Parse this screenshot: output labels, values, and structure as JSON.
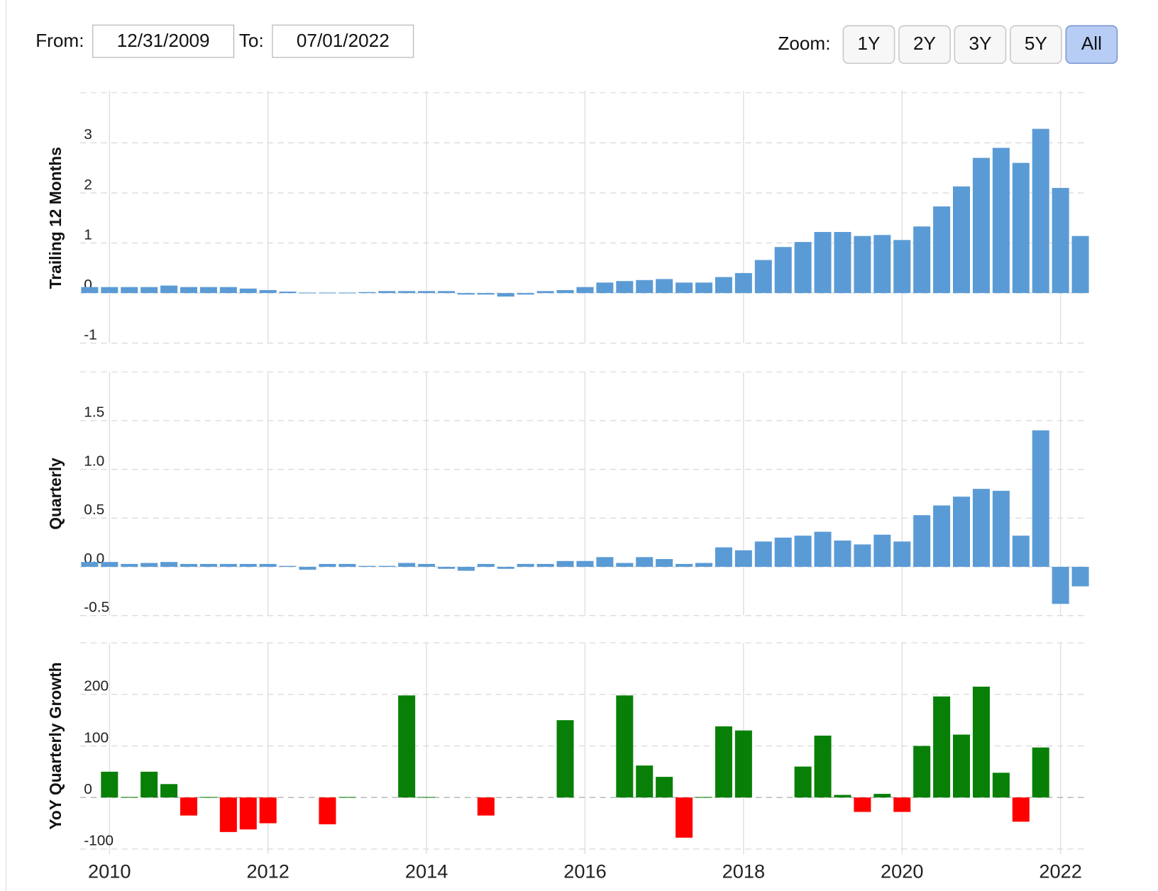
{
  "controls": {
    "from_label": "From:",
    "from_value": "12/31/2009",
    "to_label": "To:",
    "to_value": "07/01/2022",
    "zoom_label": "Zoom:",
    "zoom_buttons": [
      "1Y",
      "2Y",
      "3Y",
      "5Y",
      "All"
    ],
    "active_zoom": 4
  },
  "chart_data": [
    {
      "type": "bar",
      "y_label": "Trailing 12 Months",
      "color": "#5b9bd5",
      "grid": true,
      "x": [
        2009.75,
        2010,
        2010.25,
        2010.5,
        2010.75,
        2011,
        2011.25,
        2011.5,
        2011.75,
        2012,
        2012.25,
        2012.5,
        2012.75,
        2013,
        2013.25,
        2013.5,
        2013.75,
        2014,
        2014.25,
        2014.5,
        2014.75,
        2015,
        2015.25,
        2015.5,
        2015.75,
        2016,
        2016.25,
        2016.5,
        2016.75,
        2017,
        2017.25,
        2017.5,
        2017.75,
        2018,
        2018.25,
        2018.5,
        2018.75,
        2019,
        2019.25,
        2019.5,
        2019.75,
        2020,
        2020.25,
        2020.5,
        2020.75,
        2021,
        2021.25,
        2021.5,
        2021.75,
        2022,
        2022.25
      ],
      "values": [
        0.12,
        0.12,
        0.12,
        0.12,
        0.15,
        0.12,
        0.12,
        0.12,
        0.09,
        0.06,
        0.03,
        0.01,
        0.01,
        0.01,
        0.02,
        0.04,
        0.04,
        0.04,
        0.04,
        -0.03,
        -0.03,
        -0.07,
        -0.03,
        0.04,
        0.06,
        0.12,
        0.21,
        0.24,
        0.26,
        0.28,
        0.21,
        0.21,
        0.32,
        0.4,
        0.66,
        0.92,
        1.02,
        1.22,
        1.22,
        1.14,
        1.16,
        1.06,
        1.33,
        1.73,
        2.13,
        2.7,
        2.9,
        2.6,
        3.28,
        2.1,
        1.14
      ],
      "xlim": [
        2009.63,
        2022.34
      ],
      "xticks": [
        2010,
        2012,
        2014,
        2016,
        2018,
        2020,
        2022
      ],
      "ylim": [
        -1,
        4
      ],
      "yticks": [
        -1,
        0,
        1,
        2,
        3
      ]
    },
    {
      "type": "bar",
      "y_label": "Quarterly",
      "color": "#5b9bd5",
      "grid": true,
      "x": [
        2009.75,
        2010,
        2010.25,
        2010.5,
        2010.75,
        2011,
        2011.25,
        2011.5,
        2011.75,
        2012,
        2012.25,
        2012.5,
        2012.75,
        2013,
        2013.25,
        2013.5,
        2013.75,
        2014,
        2014.25,
        2014.5,
        2014.75,
        2015,
        2015.25,
        2015.5,
        2015.75,
        2016,
        2016.25,
        2016.5,
        2016.75,
        2017,
        2017.25,
        2017.5,
        2017.75,
        2018,
        2018.25,
        2018.5,
        2018.75,
        2019,
        2019.25,
        2019.5,
        2019.75,
        2020,
        2020.25,
        2020.5,
        2020.75,
        2021,
        2021.25,
        2021.5,
        2021.75,
        2022,
        2022.25
      ],
      "values": [
        0.05,
        0.05,
        0.03,
        0.04,
        0.05,
        0.03,
        0.03,
        0.03,
        0.03,
        0.03,
        0.01,
        -0.03,
        0.03,
        0.03,
        0.01,
        0.01,
        0.04,
        0.03,
        -0.02,
        -0.04,
        0.03,
        -0.02,
        0.03,
        0.03,
        0.06,
        0.06,
        0.1,
        0.04,
        0.1,
        0.08,
        0.03,
        0.04,
        0.2,
        0.17,
        0.26,
        0.3,
        0.32,
        0.36,
        0.27,
        0.23,
        0.33,
        0.26,
        0.53,
        0.63,
        0.72,
        0.8,
        0.78,
        0.32,
        1.4,
        -0.38,
        -0.2
      ],
      "xlim": [
        2009.63,
        2022.34
      ],
      "xticks": [
        2010,
        2012,
        2014,
        2016,
        2018,
        2020,
        2022
      ],
      "ylim": [
        -0.5,
        2
      ],
      "yticks": [
        -0.5,
        {
          "value": 0,
          "label": "0.0"
        },
        0.5,
        {
          "value": 1,
          "label": "1.0"
        },
        1.5
      ]
    },
    {
      "type": "signed_bar",
      "y_label": "YoY Quarterly Growth",
      "positive_color": "#088008",
      "negative_color": "#ff0000",
      "grid": true,
      "x": [
        2009.75,
        2010,
        2010.25,
        2010.5,
        2010.75,
        2011,
        2011.25,
        2011.5,
        2011.75,
        2012,
        2012.25,
        2012.5,
        2012.75,
        2013,
        2013.25,
        2013.5,
        2013.75,
        2014,
        2014.25,
        2014.5,
        2014.75,
        2015,
        2015.25,
        2015.5,
        2015.75,
        2016,
        2016.25,
        2016.5,
        2016.75,
        2017,
        2017.25,
        2017.5,
        2017.75,
        2018,
        2018.25,
        2018.5,
        2018.75,
        2019,
        2019.25,
        2019.5,
        2019.75,
        2020,
        2020.25,
        2020.5,
        2020.75,
        2021,
        2021.25,
        2021.5,
        2021.75,
        2022,
        2022.25
      ],
      "values": [
        null,
        50,
        1,
        50,
        26,
        -35,
        1,
        -67,
        -62,
        -50,
        null,
        null,
        -52,
        1,
        null,
        null,
        198,
        1,
        null,
        null,
        -35,
        null,
        null,
        null,
        150,
        null,
        null,
        198,
        62,
        40,
        -78,
        1,
        138,
        130,
        null,
        null,
        60,
        120,
        5,
        -28,
        7,
        -28,
        100,
        196,
        122,
        215,
        48,
        -47,
        97,
        null,
        null
      ],
      "xlim": [
        2009.63,
        2022.34
      ],
      "xticks": [
        2010,
        2012,
        2014,
        2016,
        2018,
        2020,
        2022
      ],
      "ylim": [
        -100,
        300
      ],
      "yticks": [
        -100,
        0,
        100,
        200
      ]
    }
  ]
}
